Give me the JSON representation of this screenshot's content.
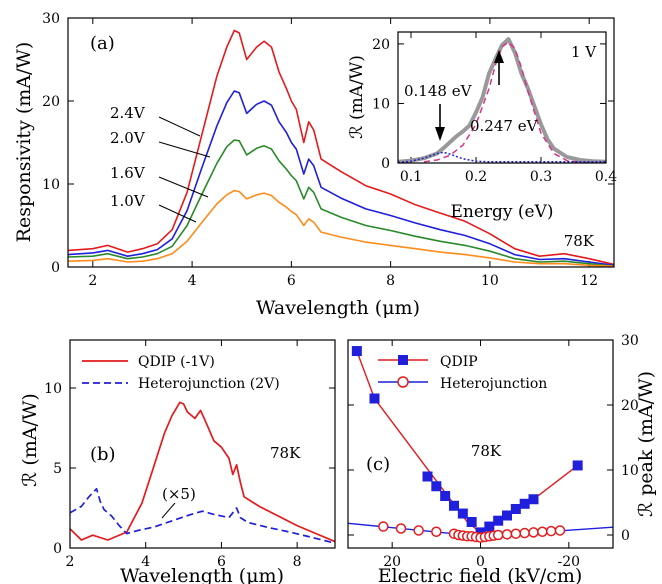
{
  "chart_data": [
    {
      "type": "line",
      "panel": "(a)",
      "xlabel": "Wavelength (μm)",
      "ylabel": "Responsivity (mA/W)",
      "xlim": [
        1.5,
        12.5
      ],
      "ylim": [
        0,
        30
      ],
      "xticks": [
        2,
        4,
        6,
        8,
        10,
        12
      ],
      "yticks": [
        0,
        10,
        20,
        30
      ],
      "grid": false,
      "annotation": "78K",
      "series": [
        {
          "name": "2.4V",
          "color": "#e41a1c",
          "x": [
            1.5,
            2.0,
            2.3,
            2.7,
            3.0,
            3.3,
            3.6,
            3.9,
            4.2,
            4.5,
            4.7,
            4.85,
            4.95,
            5.1,
            5.3,
            5.45,
            5.6,
            5.75,
            5.9,
            6.0,
            6.1,
            6.25,
            6.35,
            6.45,
            6.6,
            7.0,
            7.5,
            8.0,
            8.5,
            9.0,
            9.5,
            10.0,
            10.5,
            11.0,
            11.5,
            12.0,
            12.5
          ],
          "y": [
            2.0,
            2.2,
            2.6,
            1.8,
            2.2,
            2.8,
            4.5,
            9.0,
            16.0,
            23.0,
            26.5,
            28.5,
            28.2,
            25.0,
            26.5,
            27.2,
            26.5,
            23.5,
            21.5,
            20.0,
            19.0,
            15.0,
            17.5,
            16.5,
            13.0,
            11.5,
            9.8,
            8.8,
            7.5,
            6.5,
            5.5,
            4.0,
            2.2,
            1.3,
            1.6,
            1.0,
            0.3
          ]
        },
        {
          "name": "2.0V",
          "color": "#1f1fdc",
          "x": [
            1.5,
            2.0,
            2.3,
            2.7,
            3.0,
            3.3,
            3.6,
            3.9,
            4.2,
            4.5,
            4.7,
            4.85,
            4.95,
            5.1,
            5.3,
            5.45,
            5.6,
            5.75,
            5.9,
            6.0,
            6.1,
            6.25,
            6.35,
            6.45,
            6.6,
            7.0,
            7.5,
            8.0,
            8.5,
            9.0,
            9.5,
            10.0,
            10.5,
            11.0,
            11.5,
            12.0,
            12.5
          ],
          "y": [
            1.5,
            1.7,
            2.0,
            1.3,
            1.6,
            2.1,
            3.4,
            6.8,
            12.0,
            17.0,
            19.8,
            21.2,
            21.0,
            18.5,
            19.6,
            20.0,
            19.5,
            17.5,
            16.2,
            15.0,
            14.2,
            11.2,
            13.0,
            12.2,
            9.6,
            8.3,
            7.0,
            6.2,
            5.3,
            4.5,
            3.8,
            2.8,
            1.5,
            0.9,
            1.0,
            0.6,
            0.2
          ]
        },
        {
          "name": "1.6V",
          "color": "#2a8a2a",
          "x": [
            1.5,
            2.0,
            2.3,
            2.7,
            3.0,
            3.3,
            3.6,
            3.9,
            4.2,
            4.5,
            4.7,
            4.85,
            4.95,
            5.1,
            5.3,
            5.45,
            5.6,
            5.75,
            5.9,
            6.0,
            6.1,
            6.25,
            6.35,
            6.45,
            6.6,
            7.0,
            7.5,
            8.0,
            8.5,
            9.0,
            9.5,
            10.0,
            10.5,
            11.0,
            11.5,
            12.0,
            12.5
          ],
          "y": [
            1.2,
            1.3,
            1.6,
            1.0,
            1.2,
            1.6,
            2.5,
            5.0,
            8.8,
            12.5,
            14.5,
            15.3,
            15.2,
            13.5,
            14.3,
            14.6,
            14.2,
            12.8,
            11.8,
            11.0,
            10.4,
            8.2,
            9.6,
            9.0,
            7.0,
            6.0,
            5.0,
            4.4,
            3.7,
            3.1,
            2.6,
            1.9,
            1.0,
            0.6,
            0.7,
            0.4,
            0.1
          ]
        },
        {
          "name": "1.0V",
          "color": "#ff8c1a",
          "x": [
            1.5,
            2.0,
            2.3,
            2.7,
            3.0,
            3.3,
            3.6,
            3.9,
            4.2,
            4.5,
            4.7,
            4.85,
            4.95,
            5.1,
            5.3,
            5.45,
            5.6,
            5.75,
            5.9,
            6.0,
            6.1,
            6.25,
            6.35,
            6.45,
            6.6,
            7.0,
            7.5,
            8.0,
            8.5,
            9.0,
            9.5,
            10.0,
            10.5,
            11.0,
            11.5,
            12.0,
            12.5
          ],
          "y": [
            0.7,
            0.8,
            1.0,
            0.6,
            0.7,
            1.0,
            1.6,
            3.1,
            5.4,
            7.6,
            8.7,
            9.2,
            9.1,
            8.2,
            8.7,
            8.9,
            8.6,
            7.8,
            7.2,
            6.7,
            6.3,
            5.0,
            5.8,
            5.4,
            4.2,
            3.6,
            3.0,
            2.6,
            2.2,
            1.8,
            1.5,
            1.1,
            0.6,
            0.4,
            0.4,
            0.2,
            0.1
          ]
        }
      ],
      "inset": {
        "type": "line",
        "xlabel": "Energy (eV)",
        "ylabel": "ℛ (mA/W)",
        "xlim": [
          0.08,
          0.4
        ],
        "ylim": [
          0,
          22
        ],
        "xticks": [
          0.1,
          0.2,
          0.3,
          0.4
        ],
        "yticks": [
          0,
          10,
          20
        ],
        "annotation": "1 V",
        "peak_labels": [
          "0.148 eV",
          "0.247 eV"
        ],
        "series": [
          {
            "role": "measured",
            "color": "#999999",
            "x": [
              0.08,
              0.1,
              0.12,
              0.13,
              0.14,
              0.15,
              0.16,
              0.17,
              0.18,
              0.19,
              0.2,
              0.21,
              0.22,
              0.23,
              0.24,
              0.25,
              0.26,
              0.27,
              0.28,
              0.29,
              0.3,
              0.31,
              0.32,
              0.34,
              0.36,
              0.38,
              0.4
            ],
            "y": [
              0.2,
              0.4,
              0.8,
              1.2,
              1.6,
              2.5,
              3.5,
              4.5,
              5.3,
              6.3,
              8.5,
              11.0,
              15.0,
              17.5,
              19.8,
              20.8,
              18.5,
              15.0,
              12.5,
              9.5,
              6.5,
              4.0,
              2.4,
              1.0,
              0.5,
              0.3,
              0.2
            ]
          },
          {
            "role": "gaussian-0.247eV",
            "color": "#d6338a",
            "x": [
              0.12,
              0.14,
              0.16,
              0.18,
              0.2,
              0.22,
              0.23,
              0.24,
              0.25,
              0.26,
              0.27,
              0.28,
              0.3,
              0.32,
              0.34,
              0.36,
              0.38
            ],
            "y": [
              0.2,
              0.5,
              1.3,
              3.0,
              6.5,
              12.5,
              16.5,
              19.5,
              20.3,
              19.2,
              16.0,
              12.0,
              5.0,
              1.6,
              0.4,
              0.1,
              0.0
            ]
          },
          {
            "role": "gaussian-0.148eV",
            "color": "#2222cc",
            "x": [
              0.08,
              0.1,
              0.12,
              0.14,
              0.15,
              0.16,
              0.18,
              0.2,
              0.22,
              0.25,
              0.3,
              0.35,
              0.4
            ],
            "y": [
              0.1,
              0.3,
              0.8,
              1.6,
              1.8,
              1.5,
              0.7,
              0.3,
              0.2,
              0.2,
              0.2,
              0.2,
              0.2
            ]
          }
        ]
      }
    },
    {
      "type": "line",
      "panel": "(b)",
      "xlabel": "Wavelength (μm)",
      "ylabel": "ℛ (mA/W)",
      "xlim": [
        2,
        9
      ],
      "ylim": [
        0,
        13
      ],
      "xticks": [
        2,
        4,
        6,
        8
      ],
      "yticks": [
        0,
        5,
        10
      ],
      "annotation": "78K",
      "multiplier_label": "(×5)",
      "legend": "top-right",
      "series": [
        {
          "name": "QDIP (-1V)",
          "color": "#e41a1c",
          "dash": "solid",
          "x": [
            2.0,
            2.3,
            2.6,
            3.0,
            3.5,
            3.9,
            4.2,
            4.5,
            4.7,
            4.9,
            5.0,
            5.1,
            5.3,
            5.45,
            5.6,
            5.8,
            6.0,
            6.2,
            6.3,
            6.4,
            6.5,
            6.6,
            7.0,
            7.5,
            8.0,
            8.5,
            9.0
          ],
          "y": [
            1.2,
            0.5,
            0.8,
            0.5,
            1.0,
            2.8,
            5.0,
            7.2,
            8.3,
            9.1,
            9.0,
            8.5,
            8.1,
            8.6,
            7.8,
            6.7,
            6.3,
            5.6,
            4.6,
            5.2,
            4.1,
            3.2,
            2.6,
            2.0,
            1.4,
            0.9,
            0.4
          ]
        },
        {
          "name": "Heterojunction (2V)",
          "color": "#1f1fdc",
          "dash": "dashed",
          "x": [
            2.0,
            2.3,
            2.5,
            2.7,
            2.8,
            2.9,
            3.1,
            3.3,
            3.5,
            3.8,
            4.2,
            4.7,
            5.2,
            5.5,
            5.8,
            6.2,
            6.4,
            6.5,
            6.7,
            7.2,
            7.8,
            8.5,
            9.0
          ],
          "y": [
            2.2,
            2.6,
            3.2,
            3.7,
            2.9,
            2.4,
            2.0,
            1.4,
            0.9,
            1.1,
            1.3,
            1.7,
            2.1,
            2.3,
            2.1,
            1.9,
            2.5,
            1.9,
            1.6,
            1.3,
            1.0,
            0.6,
            0.3
          ]
        }
      ]
    },
    {
      "type": "scatter",
      "panel": "(c)",
      "xlabel": "Electric field (kV/cm)",
      "ylabel": "ℛ peak (mA/W)",
      "xlim": [
        30,
        -30
      ],
      "ylim": [
        -2,
        30
      ],
      "xticks": [
        20,
        0,
        -20
      ],
      "yticks": [
        0,
        10,
        20,
        30
      ],
      "annotation": "78K",
      "legend": "top-right",
      "series": [
        {
          "name": "QDIP",
          "color": "#1f1fdc",
          "marker": "square",
          "line_color": "#e41a1c",
          "x": [
            28,
            24,
            12,
            10,
            8,
            6,
            4,
            2,
            0,
            -2,
            -4,
            -6,
            -8,
            -10,
            -12,
            -22
          ],
          "y": [
            28.3,
            21.0,
            9.0,
            7.5,
            6.0,
            4.5,
            3.3,
            2.0,
            0.4,
            1.3,
            2.2,
            3.0,
            4.0,
            4.8,
            5.5,
            10.7
          ]
        },
        {
          "name": "Heterojunction",
          "color": "#e41a1c",
          "marker": "circle",
          "line_color": "#1f1fdc",
          "x": [
            22,
            18,
            14,
            10,
            6,
            5,
            4,
            3,
            2,
            1,
            0,
            -1,
            -2,
            -3,
            -4,
            -6,
            -8,
            -10,
            -12,
            -14,
            -16,
            -18
          ],
          "y": [
            1.3,
            1.0,
            0.7,
            0.5,
            0.2,
            0.0,
            -0.1,
            -0.2,
            -0.2,
            -0.3,
            -0.4,
            -0.3,
            -0.2,
            -0.1,
            0.0,
            0.1,
            0.2,
            0.3,
            0.4,
            0.5,
            0.6,
            0.7
          ]
        }
      ],
      "line_fits": [
        {
          "color": "#e41a1c",
          "x": [
            28,
            24,
            3,
            0,
            -12,
            -22
          ],
          "y": [
            28.3,
            21.0,
            2.0,
            0.4,
            5.5,
            10.7
          ]
        },
        {
          "color": "#1f1fdc",
          "x": [
            30,
            0,
            -30
          ],
          "y": [
            1.8,
            -0.2,
            1.2
          ]
        }
      ]
    }
  ]
}
